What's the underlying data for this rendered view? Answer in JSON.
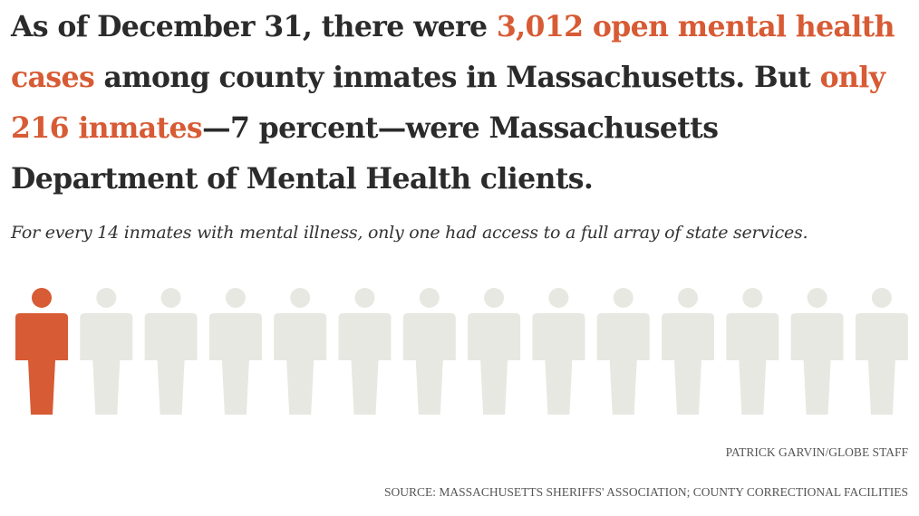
{
  "headline": {
    "p1": "As of December 31, there were ",
    "h1": "3,012 open mental health cases",
    "p2": " among county inmates in Massachusetts. But ",
    "h2": "only 216 inmates",
    "p3": "—7 percent—were Massachusetts Department of Mental Health clients."
  },
  "subhead": "For every 14 inmates with mental illness, only one had access to a full array of state services.",
  "credit": "PATRICK GARVIN/GLOBE STAFF",
  "source": "SOURCE: MASSACHUSETTS SHERIFFS' ASSOCIATION; COUNTY CORRECTIONAL FACILITIES",
  "colors": {
    "highlight": "#d75b34",
    "inactive": "#e8e8e2",
    "text": "#2b2b2b"
  },
  "chart_data": {
    "type": "pictogram",
    "total": 14,
    "highlighted": 1,
    "icon": "person-icon"
  }
}
